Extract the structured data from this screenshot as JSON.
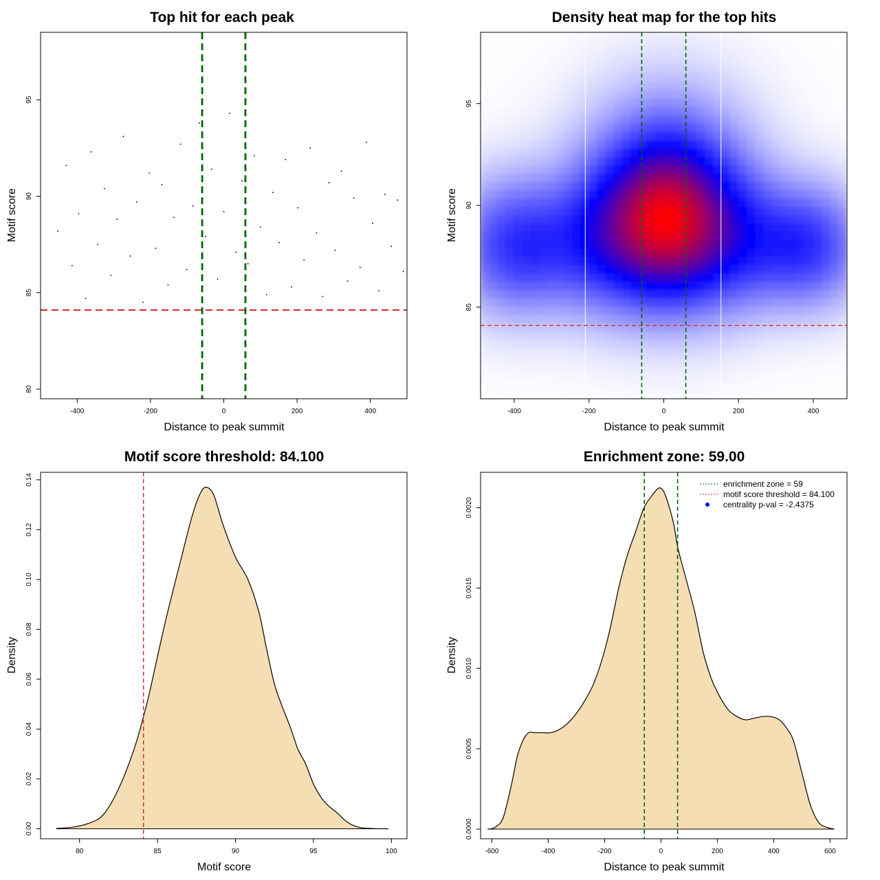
{
  "colors": {
    "threshold_line": "#d03030",
    "zone_line": "#006400",
    "density_fill": "#f5deb3",
    "heat_low": "#ffffff",
    "heat_mid": "#0000ff",
    "heat_high": "#ff0000",
    "points": "#000000"
  },
  "chart_data": [
    {
      "id": "scatter",
      "type": "scatter",
      "title": "Top hit for each peak",
      "xlabel": "Distance to peak summit",
      "ylabel": "Motif score",
      "xlim": [
        -500,
        500
      ],
      "ylim": [
        79.5,
        98.5
      ],
      "x_ticks": [
        -400,
        -200,
        0,
        200,
        400
      ],
      "y_ticks": [
        80,
        85,
        90,
        95
      ],
      "x_tick_labels": [
        "-400",
        "-200",
        "0",
        "200",
        "400"
      ],
      "y_tick_labels": [
        "80",
        "85",
        "90",
        "95"
      ],
      "hlines": [
        84.1
      ],
      "vlines": [
        -59,
        59
      ],
      "points": [
        [
          -453,
          88.2
        ],
        [
          -430,
          91.6
        ],
        [
          -414,
          86.4
        ],
        [
          -396,
          89.1
        ],
        [
          -377,
          84.7
        ],
        [
          -362,
          92.3
        ],
        [
          -344,
          87.5
        ],
        [
          -326,
          90.4
        ],
        [
          -308,
          85.9
        ],
        [
          -291,
          88.8
        ],
        [
          -274,
          93.1
        ],
        [
          -255,
          86.9
        ],
        [
          -238,
          89.7
        ],
        [
          -221,
          84.5
        ],
        [
          -203,
          91.2
        ],
        [
          -186,
          87.3
        ],
        [
          -169,
          90.6
        ],
        [
          -152,
          85.4
        ],
        [
          -136,
          88.9
        ],
        [
          -118,
          92.7
        ],
        [
          -101,
          86.2
        ],
        [
          -84,
          89.5
        ],
        [
          -67,
          93.8
        ],
        [
          -50,
          87.9
        ],
        [
          -33,
          91.4
        ],
        [
          -17,
          85.7
        ],
        [
          0,
          89.2
        ],
        [
          16,
          94.3
        ],
        [
          33,
          87.1
        ],
        [
          50,
          90.8
        ],
        [
          66,
          86.5
        ],
        [
          83,
          92.1
        ],
        [
          100,
          88.4
        ],
        [
          117,
          84.9
        ],
        [
          134,
          90.2
        ],
        [
          151,
          87.6
        ],
        [
          168,
          91.9
        ],
        [
          185,
          85.3
        ],
        [
          202,
          89.4
        ],
        [
          219,
          86.7
        ],
        [
          236,
          92.5
        ],
        [
          253,
          88.1
        ],
        [
          270,
          84.8
        ],
        [
          287,
          90.7
        ],
        [
          304,
          87.2
        ],
        [
          321,
          91.3
        ],
        [
          338,
          85.6
        ],
        [
          355,
          89.9
        ],
        [
          372,
          86.3
        ],
        [
          389,
          92.8
        ],
        [
          406,
          88.6
        ],
        [
          423,
          85.1
        ],
        [
          440,
          90.1
        ],
        [
          457,
          87.4
        ],
        [
          474,
          89.8
        ],
        [
          490,
          86.1
        ]
      ],
      "dense_points_note": ""
    },
    {
      "id": "heatmap",
      "type": "heatmap",
      "title": "Density heat map for the top hits",
      "xlabel": "Distance to peak summit",
      "ylabel": "Motif score",
      "xlim": [
        -490,
        490
      ],
      "ylim": [
        80.5,
        98.5
      ],
      "x_ticks": [
        -400,
        -200,
        0,
        200,
        400
      ],
      "y_ticks": [
        85,
        90,
        95
      ],
      "x_tick_labels": [
        "-400",
        "-200",
        "0",
        "200",
        "400"
      ],
      "y_tick_labels": [
        "85",
        "90",
        "95"
      ],
      "hlines": [
        84.1
      ],
      "vlines": [
        -59,
        59
      ],
      "white_vlines": [
        -210,
        153
      ],
      "blobs": [
        {
          "x": 5,
          "y": 89.0,
          "sx": 95,
          "sy": 2.6,
          "w": 1.0
        },
        {
          "x": 10,
          "y": 91.5,
          "sx": 150,
          "sy": 3.0,
          "w": 0.35
        },
        {
          "x": -380,
          "y": 88.0,
          "sx": 120,
          "sy": 2.2,
          "w": 0.55
        },
        {
          "x": 370,
          "y": 88.0,
          "sx": 110,
          "sy": 2.0,
          "w": 0.55
        },
        {
          "x": -150,
          "y": 88.5,
          "sx": 90,
          "sy": 2.5,
          "w": 0.45
        },
        {
          "x": 160,
          "y": 88.5,
          "sx": 90,
          "sy": 2.5,
          "w": 0.45
        }
      ]
    },
    {
      "id": "score-density",
      "type": "area",
      "title": "Motif score threshold: 84.100",
      "xlabel": "Motif score",
      "ylabel": "Density",
      "xlim": [
        77.5,
        101
      ],
      "ylim": [
        -0.004,
        0.143
      ],
      "x_ticks": [
        80,
        85,
        90,
        95,
        100
      ],
      "y_ticks": [
        0,
        0.02,
        0.04,
        0.06,
        0.08,
        0.1,
        0.12,
        0.14
      ],
      "x_tick_labels": [
        "80",
        "85",
        "90",
        "95",
        "100"
      ],
      "y_tick_labels": [
        "0.00",
        "0.02",
        "0.04",
        "0.06",
        "0.08",
        "0.10",
        "0.12",
        "0.14"
      ],
      "vlines": [
        84.1
      ],
      "x": [
        78.5,
        79.5,
        80.5,
        81.5,
        82.5,
        83.5,
        84.1,
        84.5,
        85.5,
        86.5,
        87.2,
        87.7,
        88.1,
        88.6,
        89.2,
        90.0,
        90.8,
        91.5,
        92.0,
        92.5,
        93.0,
        93.5,
        94.0,
        94.5,
        95.0,
        95.5,
        96.0,
        96.5,
        97.0,
        97.5,
        98.0,
        98.5,
        99.0,
        99.8
      ],
      "values": [
        0.0001,
        0.0006,
        0.002,
        0.0055,
        0.016,
        0.032,
        0.045,
        0.055,
        0.083,
        0.108,
        0.125,
        0.134,
        0.137,
        0.134,
        0.122,
        0.109,
        0.1,
        0.087,
        0.072,
        0.058,
        0.049,
        0.041,
        0.032,
        0.026,
        0.018,
        0.0125,
        0.009,
        0.0065,
        0.0035,
        0.0015,
        0.0005,
        0.0002,
        5e-05,
        0.0
      ]
    },
    {
      "id": "distance-density",
      "type": "area",
      "title": "Enrichment zone: 59.00",
      "xlabel": "Distance to peak summit",
      "ylabel": "Density",
      "xlim": [
        -640,
        660
      ],
      "ylim": [
        -6e-05,
        0.00222
      ],
      "x_ticks": [
        -600,
        -400,
        -200,
        0,
        200,
        400,
        600
      ],
      "y_ticks": [
        0,
        0.0005,
        0.001,
        0.0015,
        0.002
      ],
      "x_tick_labels": [
        "-600",
        "-400",
        "-200",
        "0",
        "200",
        "400",
        "600"
      ],
      "y_tick_labels": [
        "0.0000",
        "0.0005",
        "0.0010",
        "0.0015",
        "0.0020"
      ],
      "vlines": [
        -59,
        59
      ],
      "x": [
        -615,
        -590,
        -560,
        -530,
        -510,
        -490,
        -470,
        -450,
        -420,
        -390,
        -360,
        -330,
        -300,
        -270,
        -240,
        -210,
        -180,
        -150,
        -120,
        -90,
        -60,
        -30,
        -10,
        0,
        10,
        25,
        45,
        60,
        90,
        120,
        150,
        180,
        210,
        240,
        270,
        300,
        330,
        360,
        390,
        420,
        445,
        470,
        500,
        530,
        560,
        590,
        615
      ],
      "values": [
        0.0,
        1e-05,
        7e-05,
        0.00028,
        0.00045,
        0.00055,
        0.0006,
        0.0006,
        0.0006,
        0.0006,
        0.00062,
        0.00066,
        0.00072,
        0.0008,
        0.0009,
        0.00105,
        0.00125,
        0.0015,
        0.0017,
        0.00185,
        0.002,
        0.00208,
        0.00212,
        0.00212,
        0.0021,
        0.00203,
        0.0019,
        0.00175,
        0.00155,
        0.00135,
        0.0011,
        0.00093,
        0.00082,
        0.00074,
        0.0007,
        0.00068,
        0.00069,
        0.0007,
        0.0007,
        0.00068,
        0.00063,
        0.00055,
        0.00035,
        0.00015,
        4e-05,
        1e-05,
        0.0
      ],
      "legend": {
        "placement": "top-right",
        "entries": [
          {
            "label": "enrichment zone = 59",
            "style": "dotted",
            "color": "#006400"
          },
          {
            "label": "motif score threshold = 84.100",
            "style": "dotted",
            "color": "#d03030"
          },
          {
            "label": "centrality p-val = -2.4375",
            "style": "point",
            "color": "#0000ff"
          }
        ]
      }
    }
  ]
}
